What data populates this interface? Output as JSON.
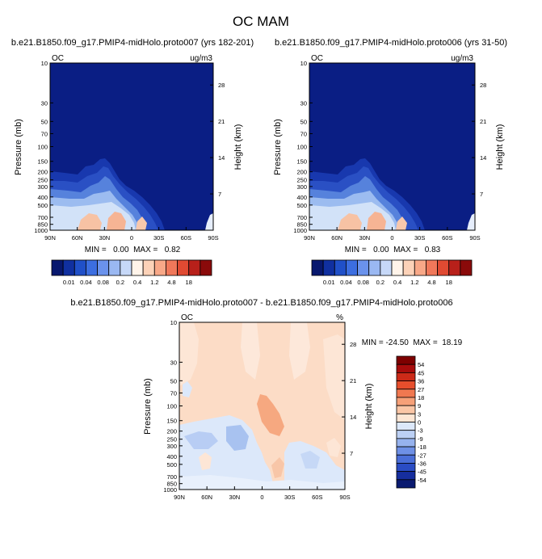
{
  "figure_title": "OC MAM",
  "chart_data": [
    {
      "type": "heatmap",
      "title": "b.e21.B1850.f09_g17.PMIP4-midHolo.proto007 (yrs 182-201)",
      "left_label": "OC",
      "units": "ug/m3",
      "ylabel": "Pressure (mb)",
      "ylabel_right": "Height (km)",
      "x_ticks": [
        "90N",
        "60N",
        "30N",
        "0",
        "30S",
        "60S",
        "90S"
      ],
      "y_ticks": [
        "10",
        "30",
        "50",
        "70",
        "100",
        "150",
        "200",
        "250",
        "300",
        "400",
        "500",
        "700",
        "850",
        "1000"
      ],
      "y_ticks_right": [
        "28",
        "21",
        "14",
        "7"
      ],
      "min_max": "MIN =   0.00  MAX =   0.82",
      "colorbar_labels": [
        "0.01",
        "0.04",
        "0.08",
        "0.2",
        "0.4",
        "1.2",
        "4.8",
        "18"
      ]
    },
    {
      "type": "heatmap",
      "title": "b.e21.B1850.f09_g17.PMIP4-midHolo.proto006 (yrs 31-50)",
      "left_label": "OC",
      "units": "ug/m3",
      "ylabel": "Pressure (mb)",
      "ylabel_right": "Height (km)",
      "x_ticks": [
        "90N",
        "60N",
        "30N",
        "0",
        "30S",
        "60S",
        "90S"
      ],
      "y_ticks": [
        "10",
        "30",
        "50",
        "70",
        "100",
        "150",
        "200",
        "250",
        "300",
        "400",
        "500",
        "700",
        "850",
        "1000"
      ],
      "y_ticks_right": [
        "28",
        "21",
        "14",
        "7"
      ],
      "min_max": "MIN =   0.00  MAX =   0.83",
      "colorbar_labels": [
        "0.01",
        "0.04",
        "0.08",
        "0.2",
        "0.4",
        "1.2",
        "4.8",
        "18"
      ]
    },
    {
      "type": "heatmap",
      "title": "b.e21.B1850.f09_g17.PMIP4-midHolo.proto007 - b.e21.B1850.f09_g17.PMIP4-midHolo.proto006",
      "left_label": "OC",
      "units": "%",
      "ylabel": "Pressure (mb)",
      "ylabel_right": "Height (km)",
      "x_ticks": [
        "90N",
        "60N",
        "30N",
        "0",
        "30S",
        "60S",
        "90S"
      ],
      "y_ticks": [
        "10",
        "30",
        "50",
        "70",
        "100",
        "150",
        "200",
        "250",
        "300",
        "400",
        "500",
        "700",
        "850",
        "1000"
      ],
      "y_ticks_right": [
        "28",
        "21",
        "14",
        "7"
      ],
      "min_max": "MIN = -24.50  MAX =  18.19",
      "colorbar_labels": [
        "54",
        "45",
        "36",
        "27",
        "18",
        "9",
        "3",
        "0",
        "-3",
        "-9",
        "-18",
        "-27",
        "-36",
        "-45",
        "-54"
      ]
    }
  ],
  "colors": {
    "seq": [
      "#08186e",
      "#1030a0",
      "#2050c8",
      "#3c6ee0",
      "#6a92ec",
      "#9ab8f2",
      "#c6d8f8",
      "#fff4ea",
      "#fcd2b8",
      "#f8a888",
      "#f0785a",
      "#e04a32",
      "#b8201a",
      "#8a0a0a"
    ],
    "div": [
      "#7e0000",
      "#a80c0c",
      "#cc2a18",
      "#e64e2c",
      "#f07850",
      "#f6a078",
      "#fac6a6",
      "#fde6d4",
      "#dce8fa",
      "#bcd0f4",
      "#96b2ee",
      "#6e90e6",
      "#4a6ed8",
      "#2a4cc4",
      "#162e9e",
      "#0a1a70"
    ]
  }
}
